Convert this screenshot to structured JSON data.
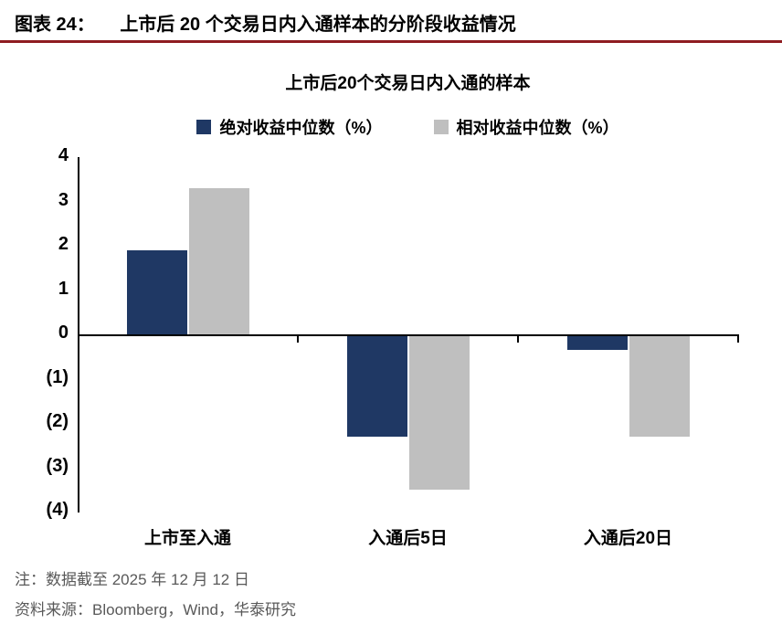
{
  "header": {
    "figure_label": "图表 24：",
    "title": "上市后 20 个交易日内入通样本的分阶段收益情况"
  },
  "chart_data": {
    "type": "bar",
    "title": "上市后20个交易日内入通的样本",
    "categories": [
      "上市至入通",
      "入通后5日",
      "入通后20日"
    ],
    "series": [
      {
        "name": "绝对收益中位数（%）",
        "color": "#1F3864",
        "values": [
          1.9,
          -2.3,
          -0.35
        ]
      },
      {
        "name": "相对收益中位数（%）",
        "color": "#BFBFBF",
        "values": [
          3.3,
          -3.5,
          -2.3
        ]
      }
    ],
    "ylim": [
      -4,
      4
    ],
    "yticks": [
      4,
      3,
      2,
      1,
      0,
      -1,
      -2,
      -3,
      -4
    ],
    "ytick_labels": [
      "4",
      "3",
      "2",
      "1",
      "0",
      "(1)",
      "(2)",
      "(3)",
      "(4)"
    ],
    "grid": false,
    "legend_position": "top"
  },
  "notes": {
    "note": "注：数据截至 2025 年 12 月 12 日",
    "source": "资料来源：Bloomberg，Wind，华泰研究"
  },
  "colors": {
    "bar_blue": "#1F3864",
    "bar_gray": "#BFBFBF",
    "header_rule": "#8F1D21",
    "note_text": "#595959"
  }
}
